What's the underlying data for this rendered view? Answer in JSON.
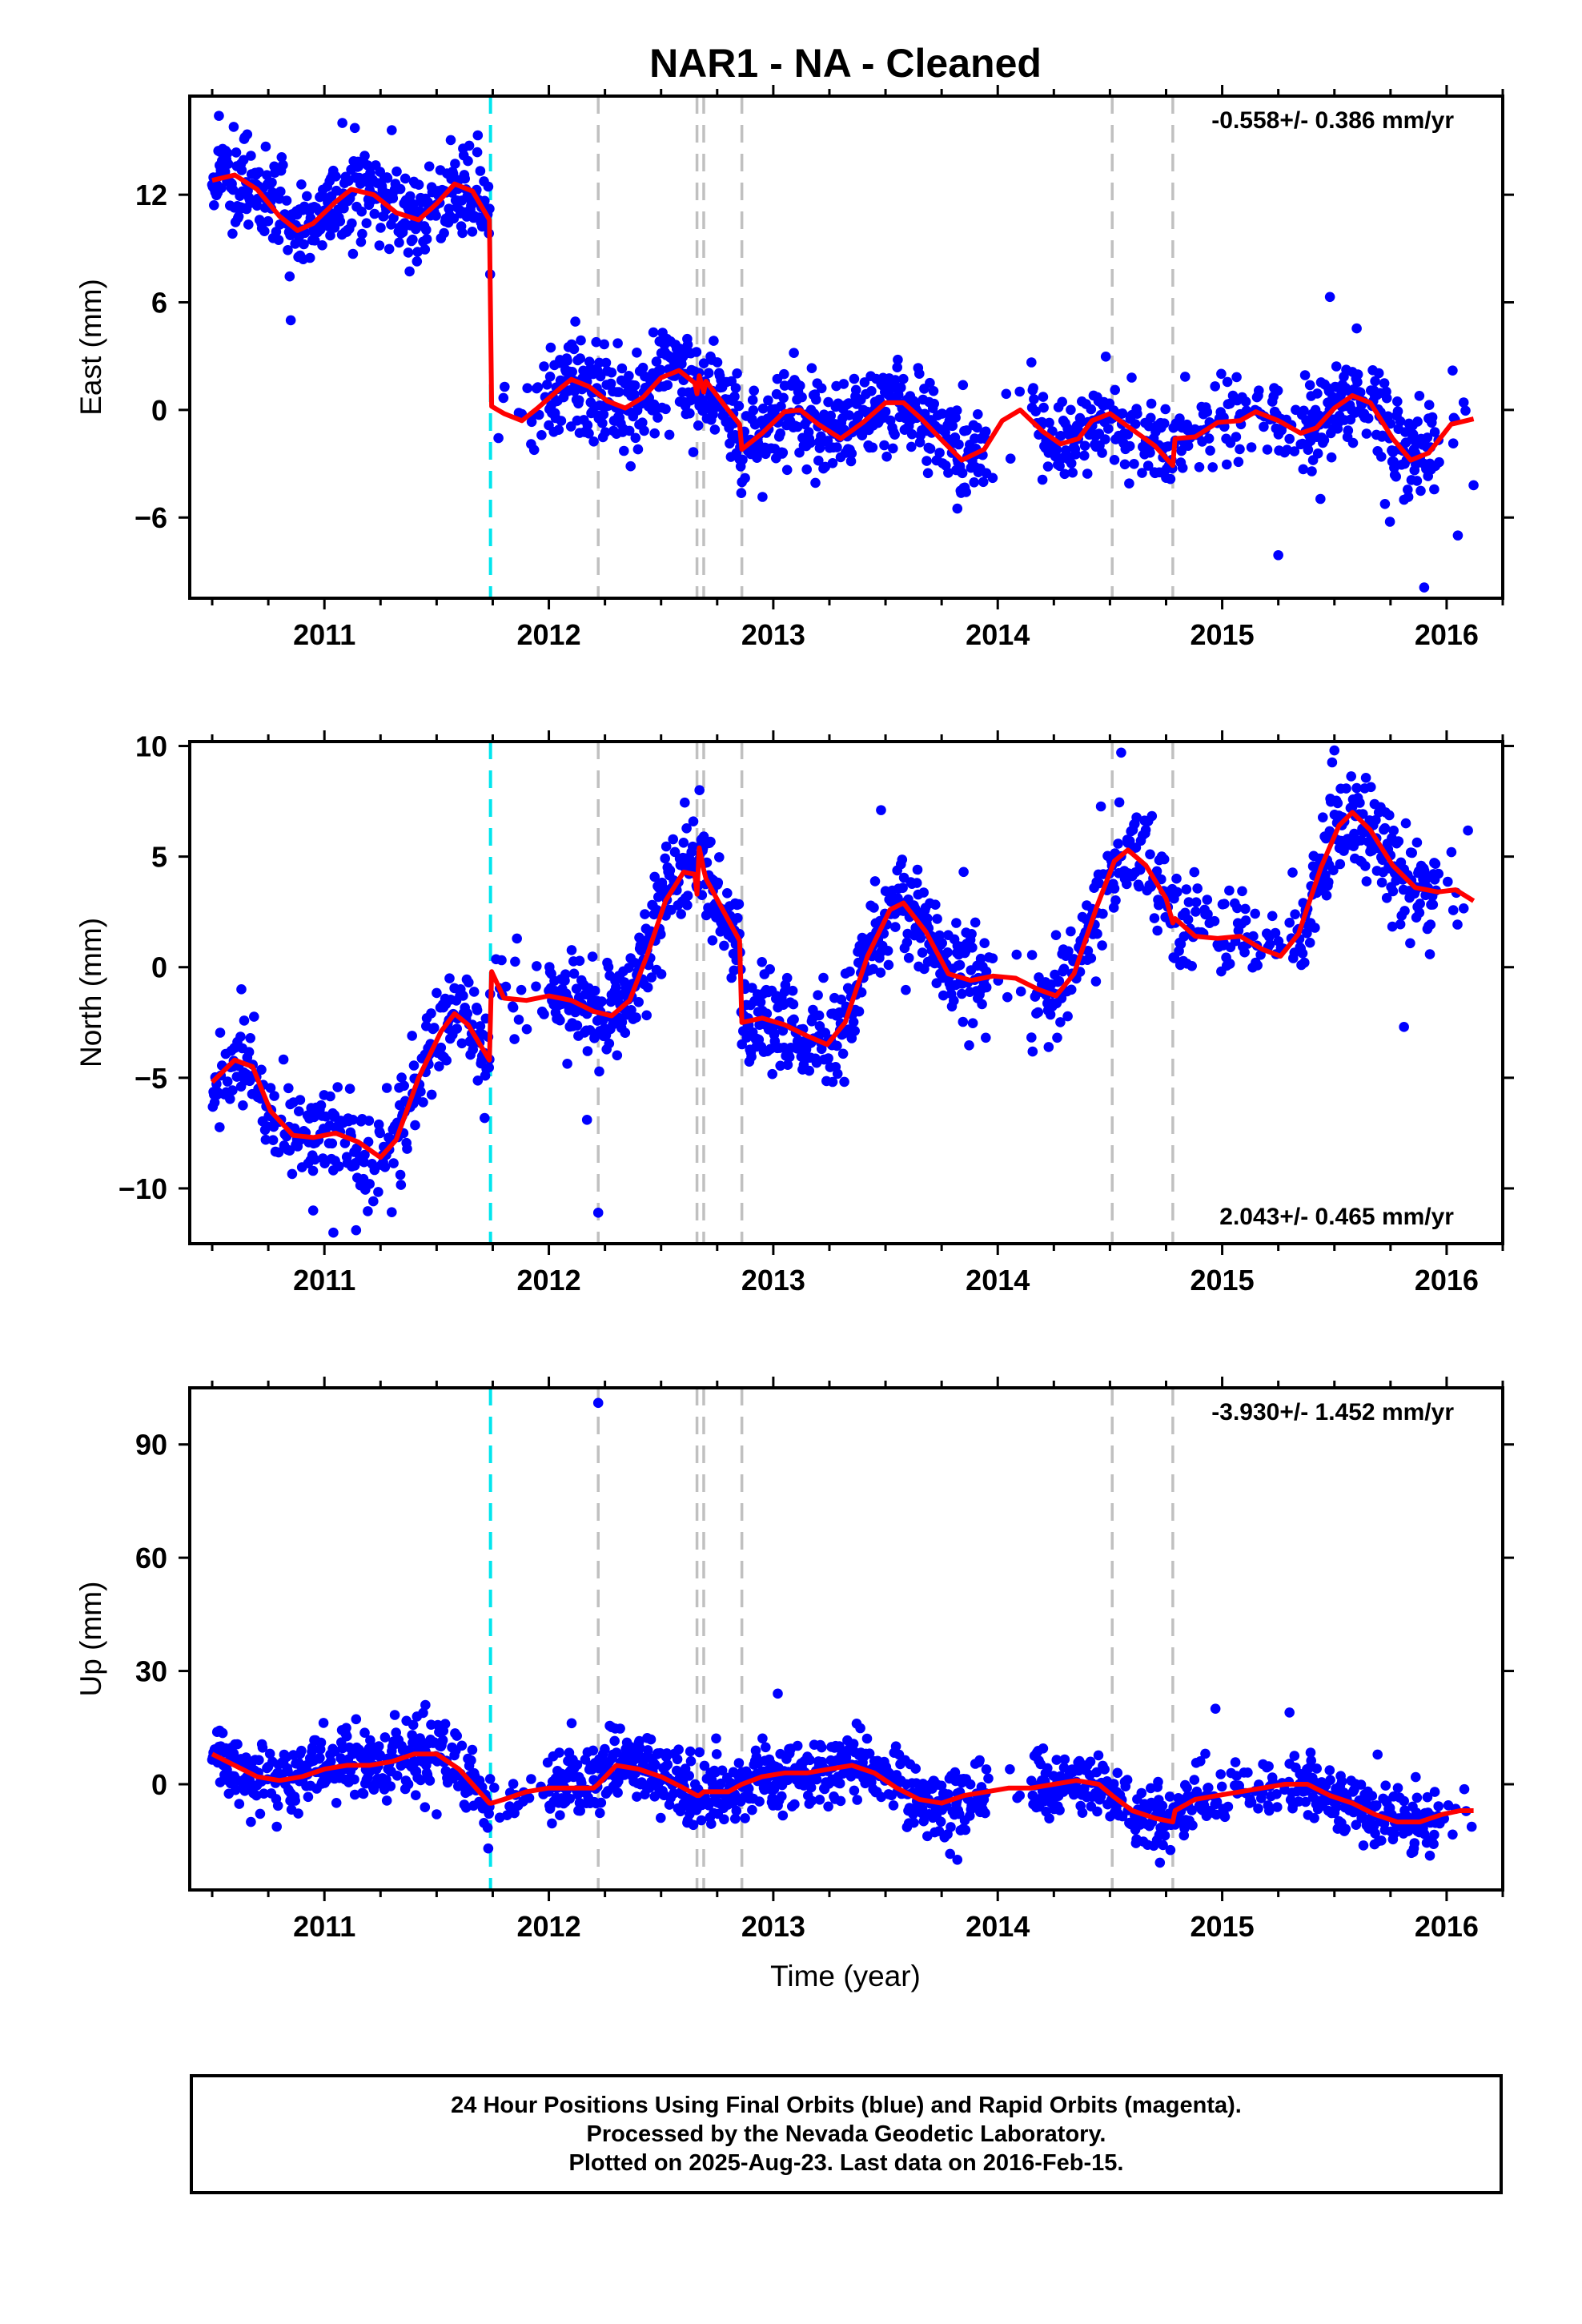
{
  "title": "NAR1  - NA - Cleaned",
  "xlabel": "Time (year)",
  "footer": {
    "line1": "24 Hour Positions Using Final Orbits (blue) and Rapid Orbits (magenta).",
    "line2": "Processed by the Nevada Geodetic Laboratory.",
    "line3": "Plotted on 2025-Aug-23. Last data on 2016-Feb-15."
  },
  "colors": {
    "final_orbit_points": "#0000ff",
    "rapid_orbit_points": "#ff00ff",
    "model_fit": "#ff0000",
    "equipment_change": "#00e5ee",
    "other_event": "#c0c0c0"
  },
  "chart_data": [
    {
      "type": "scatter",
      "ylabel": "East (mm)",
      "rate": "-0.558+/- 0.386 mm/yr",
      "rate_position": "top-right",
      "xlim": [
        2010.4,
        2016.25
      ],
      "ylim": [
        -10.5,
        17.5
      ],
      "xticks": [
        2011,
        2012,
        2013,
        2014,
        2015,
        2016
      ],
      "yticks": [
        -6,
        0,
        6,
        12
      ],
      "grid": false,
      "event_lines": [
        {
          "x": 2011.74,
          "style": "cyan-dashed"
        },
        {
          "x": 2012.22,
          "style": "gray-dashed"
        },
        {
          "x": 2012.66,
          "style": "gray-dashed"
        },
        {
          "x": 2012.69,
          "style": "gray-dashed"
        },
        {
          "x": 2012.86,
          "style": "gray-dashed"
        },
        {
          "x": 2014.51,
          "style": "gray-dashed"
        },
        {
          "x": 2014.78,
          "style": "gray-dashed"
        }
      ],
      "model_curve": [
        [
          2010.5,
          12.8
        ],
        [
          2010.6,
          13.1
        ],
        [
          2010.7,
          12.3
        ],
        [
          2010.8,
          10.8
        ],
        [
          2010.88,
          10.0
        ],
        [
          2010.95,
          10.4
        ],
        [
          2011.05,
          11.6
        ],
        [
          2011.12,
          12.3
        ],
        [
          2011.22,
          12.0
        ],
        [
          2011.32,
          11.0
        ],
        [
          2011.42,
          10.6
        ],
        [
          2011.5,
          11.5
        ],
        [
          2011.58,
          12.6
        ],
        [
          2011.66,
          12.2
        ],
        [
          2011.735,
          10.6
        ],
        [
          2011.745,
          0.2
        ],
        [
          2011.8,
          -0.2
        ],
        [
          2011.88,
          -0.6
        ],
        [
          2011.95,
          0.1
        ],
        [
          2012.05,
          1.2
        ],
        [
          2012.1,
          1.7
        ],
        [
          2012.18,
          1.3
        ],
        [
          2012.26,
          0.5
        ],
        [
          2012.34,
          0.1
        ],
        [
          2012.42,
          0.7
        ],
        [
          2012.5,
          1.8
        ],
        [
          2012.58,
          2.2
        ],
        [
          2012.65,
          1.5
        ],
        [
          2012.66,
          0.9
        ],
        [
          2012.67,
          1.9
        ],
        [
          2012.69,
          1.0
        ],
        [
          2012.7,
          1.6
        ],
        [
          2012.78,
          0.3
        ],
        [
          2012.85,
          -0.8
        ],
        [
          2012.86,
          -2.2
        ],
        [
          2012.95,
          -1.3
        ],
        [
          2013.05,
          -0.1
        ],
        [
          2013.12,
          0.0
        ],
        [
          2013.2,
          -0.8
        ],
        [
          2013.3,
          -1.6
        ],
        [
          2013.4,
          -0.7
        ],
        [
          2013.5,
          0.4
        ],
        [
          2013.58,
          0.4
        ],
        [
          2013.66,
          -0.5
        ],
        [
          2013.76,
          -1.8
        ],
        [
          2013.84,
          -2.8
        ],
        [
          2013.94,
          -2.2
        ],
        [
          2014.02,
          -0.6
        ],
        [
          2014.1,
          0.0
        ],
        [
          2014.2,
          -1.2
        ],
        [
          2014.28,
          -1.9
        ],
        [
          2014.36,
          -1.6
        ],
        [
          2014.42,
          -0.6
        ],
        [
          2014.5,
          -0.2
        ],
        [
          2014.6,
          -1.1
        ],
        [
          2014.7,
          -2.0
        ],
        [
          2014.78,
          -3.1
        ],
        [
          2014.79,
          -1.6
        ],
        [
          2014.88,
          -1.5
        ],
        [
          2014.98,
          -0.7
        ],
        [
          2015.08,
          -0.6
        ],
        [
          2015.15,
          -0.1
        ],
        [
          2015.25,
          -0.6
        ],
        [
          2015.35,
          -1.3
        ],
        [
          2015.42,
          -1.0
        ],
        [
          2015.5,
          0.1
        ],
        [
          2015.58,
          0.8
        ],
        [
          2015.66,
          0.4
        ],
        [
          2015.76,
          -1.6
        ],
        [
          2015.84,
          -2.8
        ],
        [
          2015.92,
          -2.4
        ],
        [
          2016.02,
          -0.8
        ],
        [
          2016.12,
          -0.5
        ]
      ],
      "density": [
        [
          2010.5,
          2011.74,
          0.9
        ],
        [
          2011.74,
          2012.0,
          0.2
        ],
        [
          2012.0,
          2012.9,
          0.95
        ],
        [
          2012.9,
          2013.95,
          0.85
        ],
        [
          2013.95,
          2014.15,
          0.06
        ],
        [
          2014.15,
          2014.9,
          0.65
        ],
        [
          2014.9,
          2015.35,
          0.4
        ],
        [
          2015.35,
          2015.95,
          0.85
        ],
        [
          2015.95,
          2016.12,
          0.15
        ]
      ],
      "noise": 1.3,
      "outliers": [
        [
          2010.53,
          16.4
        ],
        [
          2010.85,
          5.0
        ],
        [
          2011.08,
          16.0
        ],
        [
          2011.3,
          15.6
        ],
        [
          2015.48,
          6.3
        ],
        [
          2015.9,
          -9.9
        ],
        [
          2016.05,
          -7.0
        ],
        [
          2015.25,
          -8.1
        ],
        [
          2013.82,
          -5.5
        ],
        [
          2016.12,
          -4.2
        ]
      ]
    },
    {
      "type": "scatter",
      "ylabel": "North (mm)",
      "rate": "2.043+/- 0.465 mm/yr",
      "rate_position": "bottom-right",
      "xlim": [
        2010.4,
        2016.25
      ],
      "ylim": [
        -12.5,
        10.2
      ],
      "xticks": [
        2011,
        2012,
        2013,
        2014,
        2015,
        2016
      ],
      "yticks": [
        -10,
        -5,
        0,
        5,
        10
      ],
      "grid": false,
      "event_lines": [
        {
          "x": 2011.74,
          "style": "cyan-dashed"
        },
        {
          "x": 2012.22,
          "style": "gray-dashed"
        },
        {
          "x": 2012.66,
          "style": "gray-dashed"
        },
        {
          "x": 2012.69,
          "style": "gray-dashed"
        },
        {
          "x": 2012.86,
          "style": "gray-dashed"
        },
        {
          "x": 2014.51,
          "style": "gray-dashed"
        },
        {
          "x": 2014.78,
          "style": "gray-dashed"
        }
      ],
      "model_curve": [
        [
          2010.5,
          -5.2
        ],
        [
          2010.6,
          -4.2
        ],
        [
          2010.68,
          -4.5
        ],
        [
          2010.76,
          -6.5
        ],
        [
          2010.86,
          -7.6
        ],
        [
          2010.95,
          -7.7
        ],
        [
          2011.05,
          -7.5
        ],
        [
          2011.15,
          -7.9
        ],
        [
          2011.25,
          -8.6
        ],
        [
          2011.32,
          -7.8
        ],
        [
          2011.42,
          -5.0
        ],
        [
          2011.52,
          -2.9
        ],
        [
          2011.58,
          -2.1
        ],
        [
          2011.64,
          -2.6
        ],
        [
          2011.735,
          -4.2
        ],
        [
          2011.745,
          -0.2
        ],
        [
          2011.8,
          -1.4
        ],
        [
          2011.9,
          -1.5
        ],
        [
          2012.0,
          -1.3
        ],
        [
          2012.1,
          -1.5
        ],
        [
          2012.2,
          -2.0
        ],
        [
          2012.28,
          -2.2
        ],
        [
          2012.36,
          -1.5
        ],
        [
          2012.44,
          0.6
        ],
        [
          2012.52,
          3.0
        ],
        [
          2012.6,
          4.3
        ],
        [
          2012.65,
          4.2
        ],
        [
          2012.66,
          3.3
        ],
        [
          2012.67,
          5.4
        ],
        [
          2012.69,
          4.4
        ],
        [
          2012.7,
          4.0
        ],
        [
          2012.78,
          2.5
        ],
        [
          2012.85,
          1.2
        ],
        [
          2012.86,
          -2.5
        ],
        [
          2012.95,
          -2.3
        ],
        [
          2013.05,
          -2.6
        ],
        [
          2013.15,
          -3.1
        ],
        [
          2013.24,
          -3.5
        ],
        [
          2013.32,
          -2.5
        ],
        [
          2013.42,
          0.5
        ],
        [
          2013.52,
          2.6
        ],
        [
          2013.58,
          2.9
        ],
        [
          2013.68,
          1.6
        ],
        [
          2013.78,
          -0.3
        ],
        [
          2013.88,
          -0.6
        ],
        [
          2013.98,
          -0.4
        ],
        [
          2014.08,
          -0.5
        ],
        [
          2014.18,
          -1.0
        ],
        [
          2014.26,
          -1.3
        ],
        [
          2014.34,
          -0.3
        ],
        [
          2014.44,
          2.7
        ],
        [
          2014.52,
          4.8
        ],
        [
          2014.58,
          5.3
        ],
        [
          2014.66,
          4.6
        ],
        [
          2014.75,
          3.1
        ],
        [
          2014.78,
          2.0
        ],
        [
          2014.79,
          2.2
        ],
        [
          2014.88,
          1.4
        ],
        [
          2014.98,
          1.3
        ],
        [
          2015.08,
          1.4
        ],
        [
          2015.18,
          0.8
        ],
        [
          2015.26,
          0.5
        ],
        [
          2015.34,
          1.5
        ],
        [
          2015.44,
          4.5
        ],
        [
          2015.52,
          6.4
        ],
        [
          2015.58,
          7.0
        ],
        [
          2015.66,
          6.2
        ],
        [
          2015.76,
          4.6
        ],
        [
          2015.86,
          3.6
        ],
        [
          2015.96,
          3.4
        ],
        [
          2016.04,
          3.5
        ],
        [
          2016.12,
          3.0
        ]
      ],
      "density": [
        [
          2010.5,
          2011.74,
          0.7
        ],
        [
          2011.74,
          2012.0,
          0.2
        ],
        [
          2012.0,
          2012.9,
          0.95
        ],
        [
          2012.9,
          2013.95,
          0.85
        ],
        [
          2013.95,
          2014.15,
          0.06
        ],
        [
          2014.15,
          2014.9,
          0.65
        ],
        [
          2014.9,
          2015.35,
          0.4
        ],
        [
          2015.35,
          2015.95,
          0.85
        ],
        [
          2015.95,
          2016.12,
          0.15
        ]
      ],
      "noise": 1.1,
      "outliers": [
        [
          2012.22,
          -11.1
        ],
        [
          2011.04,
          -12.0
        ],
        [
          2014.55,
          9.7
        ],
        [
          2015.5,
          9.8
        ],
        [
          2015.81,
          -2.7
        ],
        [
          2013.48,
          7.1
        ],
        [
          2012.17,
          -6.9
        ],
        [
          2010.63,
          -1.0
        ],
        [
          2010.95,
          -11.0
        ]
      ]
    },
    {
      "type": "scatter",
      "ylabel": "Up (mm)",
      "rate": "-3.930+/- 1.452 mm/yr",
      "rate_position": "top-right",
      "xlim": [
        2010.4,
        2016.25
      ],
      "ylim": [
        -28,
        105
      ],
      "xticks": [
        2011,
        2012,
        2013,
        2014,
        2015,
        2016
      ],
      "yticks": [
        0,
        30,
        60,
        90
      ],
      "grid": false,
      "event_lines": [
        {
          "x": 2011.74,
          "style": "cyan-dashed"
        },
        {
          "x": 2012.22,
          "style": "gray-dashed"
        },
        {
          "x": 2012.66,
          "style": "gray-dashed"
        },
        {
          "x": 2012.69,
          "style": "gray-dashed"
        },
        {
          "x": 2012.86,
          "style": "gray-dashed"
        },
        {
          "x": 2014.51,
          "style": "gray-dashed"
        },
        {
          "x": 2014.78,
          "style": "gray-dashed"
        }
      ],
      "model_curve": [
        [
          2010.5,
          8
        ],
        [
          2010.6,
          5
        ],
        [
          2010.7,
          2
        ],
        [
          2010.8,
          1
        ],
        [
          2010.9,
          2
        ],
        [
          2011.0,
          4
        ],
        [
          2011.1,
          5
        ],
        [
          2011.2,
          5
        ],
        [
          2011.3,
          6
        ],
        [
          2011.4,
          8
        ],
        [
          2011.5,
          8
        ],
        [
          2011.6,
          4
        ],
        [
          2011.735,
          -5
        ],
        [
          2011.745,
          -5
        ],
        [
          2011.8,
          -4
        ],
        [
          2011.9,
          -2
        ],
        [
          2012.0,
          -1
        ],
        [
          2012.1,
          -1
        ],
        [
          2012.2,
          -1
        ],
        [
          2012.22,
          0
        ],
        [
          2012.3,
          5
        ],
        [
          2012.4,
          4
        ],
        [
          2012.5,
          2
        ],
        [
          2012.6,
          -1
        ],
        [
          2012.66,
          -3
        ],
        [
          2012.67,
          -3
        ],
        [
          2012.69,
          -2
        ],
        [
          2012.8,
          -2
        ],
        [
          2012.86,
          0
        ],
        [
          2012.95,
          2
        ],
        [
          2013.05,
          3
        ],
        [
          2013.15,
          3
        ],
        [
          2013.25,
          4
        ],
        [
          2013.35,
          5
        ],
        [
          2013.45,
          3
        ],
        [
          2013.55,
          -1
        ],
        [
          2013.65,
          -4
        ],
        [
          2013.75,
          -5
        ],
        [
          2013.85,
          -3
        ],
        [
          2013.95,
          -2
        ],
        [
          2014.05,
          -1
        ],
        [
          2014.15,
          -1
        ],
        [
          2014.25,
          0
        ],
        [
          2014.35,
          1
        ],
        [
          2014.45,
          0
        ],
        [
          2014.51,
          -3
        ],
        [
          2014.6,
          -7
        ],
        [
          2014.7,
          -9
        ],
        [
          2014.78,
          -10
        ],
        [
          2014.79,
          -7
        ],
        [
          2014.88,
          -4
        ],
        [
          2014.98,
          -3
        ],
        [
          2015.08,
          -2
        ],
        [
          2015.18,
          -1
        ],
        [
          2015.28,
          0
        ],
        [
          2015.38,
          0
        ],
        [
          2015.48,
          -3
        ],
        [
          2015.58,
          -5
        ],
        [
          2015.68,
          -8
        ],
        [
          2015.78,
          -10
        ],
        [
          2015.88,
          -10
        ],
        [
          2015.98,
          -8
        ],
        [
          2016.06,
          -7
        ],
        [
          2016.12,
          -7
        ]
      ],
      "density": [
        [
          2010.5,
          2011.74,
          0.75
        ],
        [
          2011.74,
          2012.0,
          0.2
        ],
        [
          2012.0,
          2012.9,
          0.95
        ],
        [
          2012.9,
          2013.95,
          0.85
        ],
        [
          2013.95,
          2014.15,
          0.06
        ],
        [
          2014.15,
          2014.9,
          0.65
        ],
        [
          2014.9,
          2015.35,
          0.4
        ],
        [
          2015.35,
          2015.95,
          0.85
        ],
        [
          2015.95,
          2016.12,
          0.15
        ]
      ],
      "noise": 4.5,
      "outliers": [
        [
          2012.22,
          101
        ],
        [
          2011.73,
          -17
        ],
        [
          2013.02,
          24
        ],
        [
          2015.3,
          19
        ],
        [
          2014.97,
          20
        ],
        [
          2013.82,
          -20
        ],
        [
          2011.45,
          21
        ]
      ]
    }
  ]
}
